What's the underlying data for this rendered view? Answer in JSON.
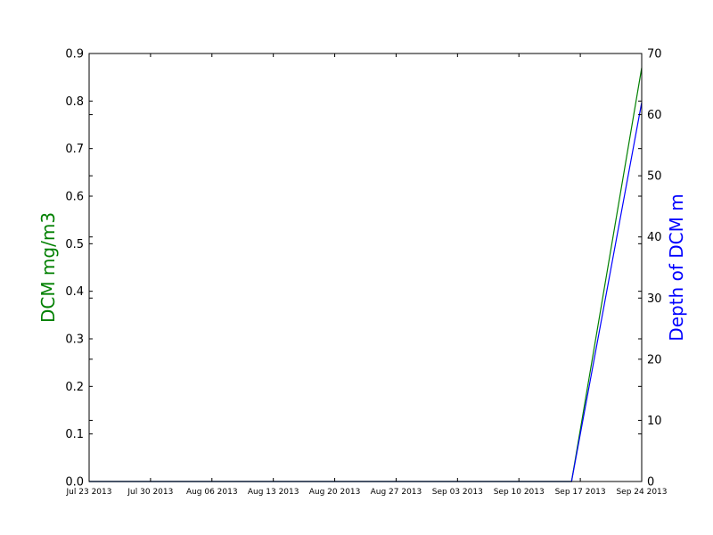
{
  "chart_data": {
    "type": "line",
    "x_type": "date",
    "xlim": [
      "2013-07-23",
      "2013-09-24"
    ],
    "x_ticks": [
      "2013-07-23",
      "2013-07-30",
      "2013-08-06",
      "2013-08-13",
      "2013-08-20",
      "2013-08-27",
      "2013-09-03",
      "2013-09-10",
      "2013-09-17",
      "2013-09-24"
    ],
    "x_tick_labels": [
      "Jul 23 2013",
      "Jul 30 2013",
      "Aug 06 2013",
      "Aug 13 2013",
      "Aug 20 2013",
      "Aug 27 2013",
      "Sep 03 2013",
      "Sep 10 2013",
      "Sep 17 2013",
      "Sep 24 2013"
    ],
    "ylabel": "DCM mg/m3",
    "ylabel_color": "#008000",
    "ylim": [
      0,
      0.9
    ],
    "y_ticks": [
      0.0,
      0.1,
      0.2,
      0.3,
      0.4,
      0.5,
      0.6,
      0.7,
      0.8,
      0.9
    ],
    "y_tick_labels": [
      "0.0",
      "0.1",
      "0.2",
      "0.3",
      "0.4",
      "0.5",
      "0.6",
      "0.7",
      "0.8",
      "0.9"
    ],
    "y2label": "Depth of DCM m",
    "y2label_color": "#0000ff",
    "y2lim": [
      0,
      70
    ],
    "y2_ticks": [
      0,
      10,
      20,
      30,
      40,
      50,
      60,
      70
    ],
    "y2_tick_labels": [
      "0",
      "10",
      "20",
      "30",
      "40",
      "50",
      "60",
      "70"
    ],
    "grid": false,
    "series": [
      {
        "axis": "left",
        "color": "#008000",
        "x": [
          "2013-07-23",
          "2013-09-16",
          "2013-09-24"
        ],
        "values": [
          0.0,
          0.0,
          0.87
        ]
      },
      {
        "axis": "right",
        "color": "#0000ff",
        "x": [
          "2013-07-23",
          "2013-09-16",
          "2013-09-24"
        ],
        "values": [
          0,
          0,
          62
        ]
      }
    ]
  }
}
